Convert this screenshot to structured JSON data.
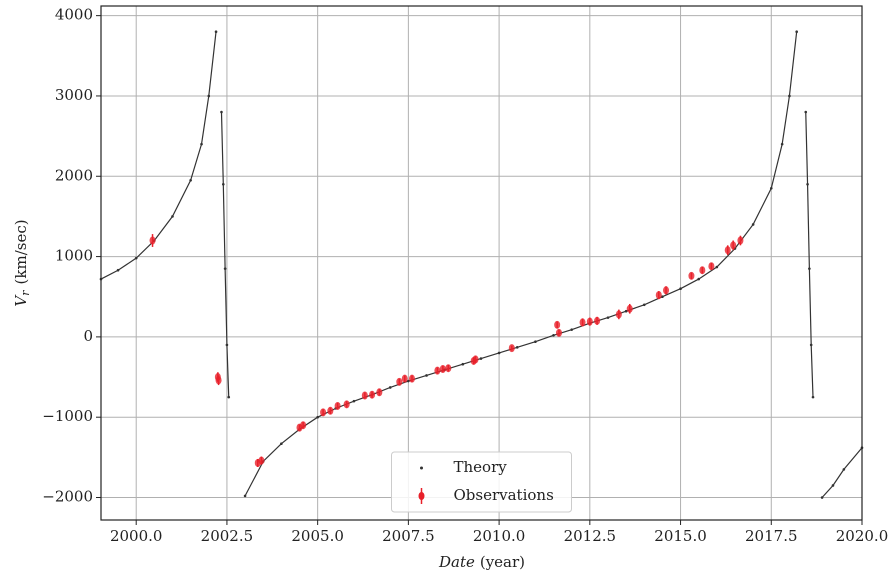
{
  "chart_data": {
    "type": "scatter",
    "xlabel": {
      "text": "Date",
      "unit": "(year)"
    },
    "ylabel": {
      "symbol": "V",
      "subscript": "r",
      "unit": "(km/sec)"
    },
    "xlim": [
      1999.03,
      2020.0
    ],
    "ylim": [
      -2280,
      4120
    ],
    "xticks": [
      {
        "value": 2000,
        "label": "2000.0"
      },
      {
        "value": 2002.5,
        "label": "2002.5"
      },
      {
        "value": 2005,
        "label": "2005.0"
      },
      {
        "value": 2007.5,
        "label": "2007.5"
      },
      {
        "value": 2010,
        "label": "2010.0"
      },
      {
        "value": 2012.5,
        "label": "2012.5"
      },
      {
        "value": 2015,
        "label": "2015.0"
      },
      {
        "value": 2017.5,
        "label": "2017.5"
      },
      {
        "value": 2020,
        "label": "2020.0"
      }
    ],
    "yticks": [
      {
        "value": -2000,
        "label": "−2000"
      },
      {
        "value": -1000,
        "label": "−1000"
      },
      0,
      1000,
      2000,
      3000,
      4000
    ],
    "grid": true,
    "legend": "lower center",
    "series": [
      {
        "name": "Theory",
        "color": "#333333",
        "style": "line",
        "x": [
          1999.03,
          1999.5,
          2000.0,
          2000.5,
          2001.0,
          2001.5,
          2001.8,
          2002.0,
          2002.2,
          2002.3,
          2002.35,
          2002.4,
          2002.45,
          2002.5,
          2002.55,
          2002.65,
          2003.0,
          2003.5,
          2004.0,
          2004.5,
          2005.0,
          2005.5,
          2006.0,
          2006.5,
          2007.0,
          2007.5,
          2008.0,
          2008.5,
          2009.0,
          2009.5,
          2010.0,
          2010.5,
          2011.0,
          2011.5,
          2012.0,
          2012.5,
          2013.0,
          2013.5,
          2014.0,
          2014.5,
          2015.0,
          2015.5,
          2016.0,
          2016.5,
          2017.0,
          2017.5,
          2017.8,
          2018.0,
          2018.2,
          2018.4,
          2018.45,
          2018.5,
          2018.55,
          2018.6,
          2018.65,
          2018.75,
          2018.9,
          2019.2,
          2019.5,
          2020.0
        ],
        "values": [
          720,
          830,
          980,
          1200,
          1500,
          1950,
          2400,
          3000,
          3800,
          null,
          2800,
          1900,
          850,
          -100,
          -750,
          null,
          -1980,
          -1550,
          -1330,
          -1150,
          -1000,
          -890,
          -800,
          -720,
          -630,
          -550,
          -480,
          -410,
          -340,
          -270,
          -200,
          -130,
          -60,
          20,
          90,
          170,
          240,
          320,
          400,
          500,
          600,
          720,
          870,
          1100,
          1400,
          1850,
          2400,
          3000,
          3800,
          null,
          2800,
          1900,
          850,
          -100,
          -750,
          null,
          -2000,
          -1850,
          -1650,
          -1380
        ]
      },
      {
        "name": "Observations",
        "color": "#e8202a",
        "style": "errorbar",
        "x": [
          2000.45,
          2002.25,
          2002.27,
          2003.35,
          2003.45,
          2004.5,
          2004.6,
          2005.15,
          2005.35,
          2005.55,
          2005.8,
          2006.3,
          2006.5,
          2006.7,
          2007.25,
          2007.4,
          2007.6,
          2008.3,
          2008.45,
          2008.6,
          2009.3,
          2009.35,
          2010.35,
          2011.6,
          2011.65,
          2012.3,
          2012.5,
          2012.7,
          2013.3,
          2013.6,
          2014.4,
          2014.6,
          2015.3,
          2015.6,
          2015.85,
          2016.3,
          2016.45,
          2016.65
        ],
        "values": [
          1200,
          -500,
          -540,
          -1570,
          -1540,
          -1130,
          -1100,
          -940,
          -920,
          -860,
          -840,
          -730,
          -720,
          -690,
          -560,
          -520,
          -520,
          -420,
          -400,
          -390,
          -300,
          -280,
          -140,
          150,
          50,
          180,
          190,
          200,
          280,
          350,
          520,
          580,
          760,
          830,
          880,
          1080,
          1140,
          1200
        ],
        "errors": [
          80,
          60,
          60,
          50,
          50,
          40,
          40,
          40,
          40,
          40,
          40,
          40,
          40,
          40,
          40,
          40,
          40,
          40,
          40,
          40,
          40,
          40,
          30,
          40,
          40,
          50,
          50,
          50,
          60,
          60,
          50,
          50,
          40,
          40,
          40,
          60,
          60,
          60
        ]
      }
    ]
  }
}
